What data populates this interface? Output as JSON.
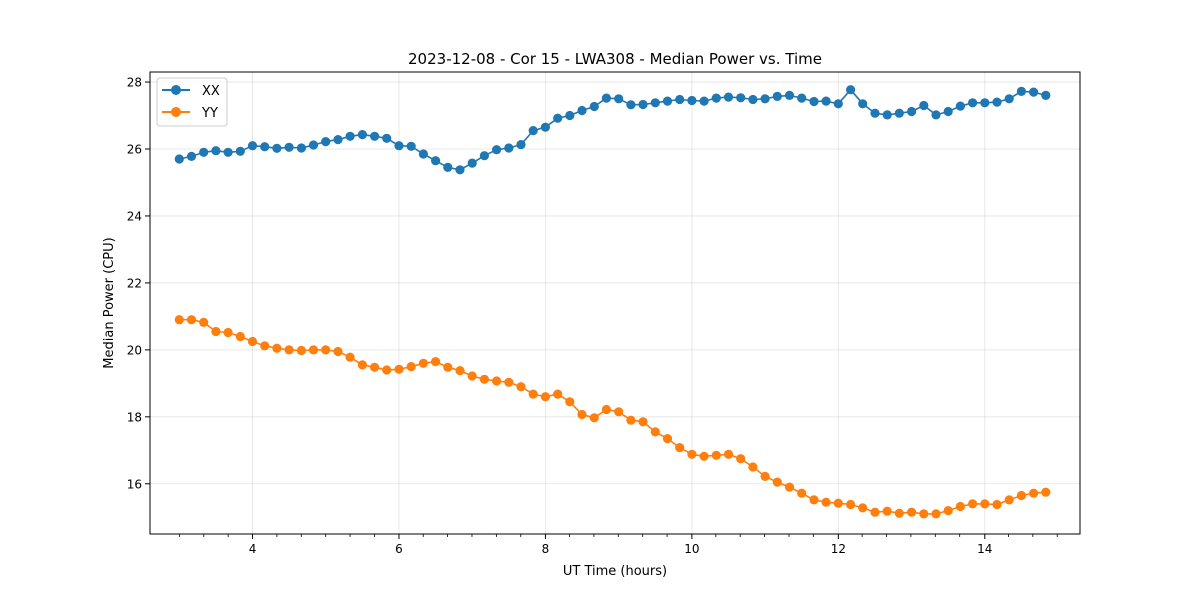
{
  "chart_data": {
    "type": "line",
    "title": "2023-12-08 - Cor 15 - LWA308 - Median Power vs. Time",
    "xlabel": "UT Time (hours)",
    "ylabel": "Median Power (CPU)",
    "xlim": [
      2.6,
      15.3
    ],
    "ylim": [
      14.5,
      28.3
    ],
    "xticks": [
      4,
      6,
      8,
      10,
      12,
      14
    ],
    "yticks": [
      16,
      18,
      20,
      22,
      24,
      26,
      28
    ],
    "xtick_labels": [
      "4",
      "6",
      "8",
      "10",
      "12",
      "14"
    ],
    "ytick_labels": [
      "16",
      "18",
      "20",
      "22",
      "24",
      "26",
      "28"
    ],
    "x_minor_step": 0.333,
    "grid": true,
    "legend_position": "top-left",
    "x": [
      3.0,
      3.167,
      3.333,
      3.5,
      3.667,
      3.833,
      4.0,
      4.167,
      4.333,
      4.5,
      4.667,
      4.833,
      5.0,
      5.167,
      5.333,
      5.5,
      5.667,
      5.833,
      6.0,
      6.167,
      6.333,
      6.5,
      6.667,
      6.833,
      7.0,
      7.167,
      7.333,
      7.5,
      7.667,
      7.833,
      8.0,
      8.167,
      8.333,
      8.5,
      8.667,
      8.833,
      9.0,
      9.167,
      9.333,
      9.5,
      9.667,
      9.833,
      10.0,
      10.167,
      10.333,
      10.5,
      10.667,
      10.833,
      11.0,
      11.167,
      11.333,
      11.5,
      11.667,
      11.833,
      12.0,
      12.167,
      12.333,
      12.5,
      12.667,
      12.833,
      13.0,
      13.167,
      13.333,
      13.5,
      13.667,
      13.833,
      14.0,
      14.167,
      14.333,
      14.5,
      14.667,
      14.833
    ],
    "series": [
      {
        "name": "XX",
        "color": "#1f77b4",
        "values": [
          25.7,
          25.78,
          25.9,
          25.95,
          25.9,
          25.93,
          26.1,
          26.07,
          26.02,
          26.05,
          26.03,
          26.12,
          26.22,
          26.28,
          26.38,
          26.43,
          26.38,
          26.32,
          26.1,
          26.08,
          25.85,
          25.65,
          25.45,
          25.38,
          25.58,
          25.8,
          25.98,
          26.03,
          26.13,
          26.55,
          26.65,
          26.92,
          27.0,
          27.15,
          27.27,
          27.52,
          27.5,
          27.32,
          27.33,
          27.38,
          27.43,
          27.48,
          27.45,
          27.43,
          27.52,
          27.55,
          27.53,
          27.48,
          27.5,
          27.57,
          27.6,
          27.52,
          27.42,
          27.43,
          27.35,
          27.77,
          27.35,
          27.07,
          27.02,
          27.07,
          27.12,
          27.3,
          27.02,
          27.12,
          27.28,
          27.38,
          27.38,
          27.4,
          27.5,
          27.72,
          27.7,
          27.6
        ]
      },
      {
        "name": "YY",
        "color": "#ff7f0e",
        "values": [
          20.9,
          20.9,
          20.82,
          20.55,
          20.52,
          20.4,
          20.25,
          20.12,
          20.05,
          20.0,
          19.98,
          20.0,
          20.0,
          19.95,
          19.78,
          19.55,
          19.48,
          19.4,
          19.42,
          19.5,
          19.6,
          19.65,
          19.48,
          19.38,
          19.22,
          19.12,
          19.07,
          19.03,
          18.9,
          18.68,
          18.6,
          18.68,
          18.45,
          18.07,
          17.97,
          18.22,
          18.15,
          17.9,
          17.85,
          17.55,
          17.35,
          17.08,
          16.88,
          16.82,
          16.85,
          16.88,
          16.75,
          16.5,
          16.22,
          16.05,
          15.9,
          15.72,
          15.52,
          15.45,
          15.42,
          15.38,
          15.28,
          15.15,
          15.18,
          15.12,
          15.15,
          15.1,
          15.1,
          15.2,
          15.32,
          15.4,
          15.4,
          15.38,
          15.52,
          15.65,
          15.72,
          15.75
        ]
      }
    ]
  }
}
